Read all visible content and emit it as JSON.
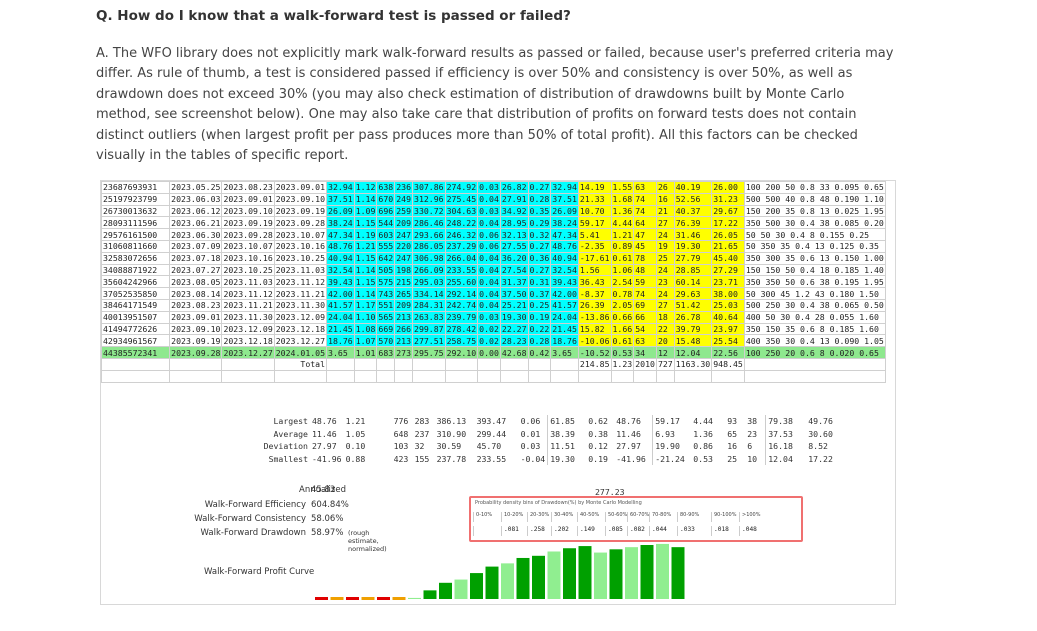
{
  "question": "Q. How do I know that a walk-forward test is passed or failed?",
  "answer": "A. The WFO library does not explicitly mark walk-forward results as passed or failed, because user's preferred criteria may differ. As rule of thumb, a test is considered passed if efficiency is over 50% and consistency is over 50%, as well as drawdown does not exceed 30% (you may also check estimation of distribution of drawdowns built by Monte Carlo method, see screenshot below). One may also take care that distribution of profits on forward tests does not contain distinct outliers (when largest profit per pass produces more than 50% of total profit). All this factors can be checked visually in the tables of specific report.",
  "rows": [
    [
      "23687693931",
      "2023.05.25",
      "2023.08.23",
      "2023.09.01",
      "32.94",
      "1.12",
      "638",
      "236",
      "307.86",
      "274.92",
      "0.03",
      "26.82",
      "0.27",
      "32.94",
      "14.19",
      "1.55",
      "63",
      "26",
      "40.19",
      "26.00",
      "100 200 50 0.8 33 0.095 0.65"
    ],
    [
      "25197923799",
      "2023.06.03",
      "2023.09.01",
      "2023.09.10",
      "37.51",
      "1.14",
      "670",
      "249",
      "312.96",
      "275.45",
      "0.04",
      "27.91",
      "0.28",
      "37.51",
      "21.33",
      "1.68",
      "74",
      "16",
      "52.56",
      "31.23",
      "500 500 40 0.8 48 0.190 1.10"
    ],
    [
      "26730013632",
      "2023.06.12",
      "2023.09.10",
      "2023.09.19",
      "26.09",
      "1.09",
      "696",
      "259",
      "330.72",
      "304.63",
      "0.03",
      "34.92",
      "0.35",
      "26.09",
      "10.70",
      "1.36",
      "74",
      "21",
      "40.37",
      "29.67",
      "150 200 35 0.8 13 0.025 1.95"
    ],
    [
      "28093111596",
      "2023.06.21",
      "2023.09.19",
      "2023.09.28",
      "38.24",
      "1.15",
      "544",
      "209",
      "286.46",
      "248.22",
      "0.04",
      "28.95",
      "0.29",
      "38.24",
      "59.17",
      "4.44",
      "64",
      "27",
      "76.39",
      "17.22",
      "350 500 30 0.4 38 0.085 0.20"
    ],
    [
      "29576161500",
      "2023.06.30",
      "2023.09.28",
      "2023.10.07",
      "47.34",
      "1.19",
      "603",
      "247",
      "293.66",
      "246.32",
      "0.06",
      "32.13",
      "0.32",
      "47.34",
      "5.41",
      "1.21",
      "47",
      "24",
      "31.46",
      "26.05",
      "50 50 30 0.4 8 0.155 0.25"
    ],
    [
      "31060811660",
      "2023.07.09",
      "2023.10.07",
      "2023.10.16",
      "48.76",
      "1.21",
      "555",
      "220",
      "286.05",
      "237.29",
      "0.06",
      "27.55",
      "0.27",
      "48.76",
      "-2.35",
      "0.89",
      "45",
      "19",
      "19.30",
      "21.65",
      "50 350 35 0.4 13 0.125 0.35"
    ],
    [
      "32583072656",
      "2023.07.18",
      "2023.10.16",
      "2023.10.25",
      "40.94",
      "1.15",
      "642",
      "247",
      "306.98",
      "266.04",
      "0.04",
      "36.20",
      "0.36",
      "40.94",
      "-17.61",
      "0.61",
      "78",
      "25",
      "27.79",
      "45.40",
      "350 300 35 0.6 13 0.150 1.00"
    ],
    [
      "34088871922",
      "2023.07.27",
      "2023.10.25",
      "2023.11.03",
      "32.54",
      "1.14",
      "505",
      "198",
      "266.09",
      "233.55",
      "0.04",
      "27.54",
      "0.27",
      "32.54",
      "1.56",
      "1.06",
      "48",
      "24",
      "28.85",
      "27.29",
      "150 150 50 0.4 18 0.185 1.40"
    ],
    [
      "35604242966",
      "2023.08.05",
      "2023.11.03",
      "2023.11.12",
      "39.43",
      "1.15",
      "575",
      "215",
      "295.03",
      "255.60",
      "0.04",
      "31.37",
      "0.31",
      "39.43",
      "36.43",
      "2.54",
      "59",
      "23",
      "60.14",
      "23.71",
      "350 350 50 0.6 38 0.195 1.95"
    ],
    [
      "37052535850",
      "2023.08.14",
      "2023.11.12",
      "2023.11.21",
      "42.00",
      "1.14",
      "743",
      "265",
      "334.14",
      "292.14",
      "0.04",
      "37.50",
      "0.37",
      "42.00",
      "-8.37",
      "0.78",
      "74",
      "24",
      "29.63",
      "38.00",
      "50 300 45 1.2 43 0.180 1.50"
    ],
    [
      "38464171549",
      "2023.08.23",
      "2023.11.21",
      "2023.11.30",
      "41.57",
      "1.17",
      "551",
      "209",
      "284.31",
      "242.74",
      "0.04",
      "25.21",
      "0.25",
      "41.57",
      "26.39",
      "2.05",
      "69",
      "27",
      "51.42",
      "25.03",
      "500 250 30 0.4 38 0.065 0.50"
    ],
    [
      "40013951507",
      "2023.09.01",
      "2023.11.30",
      "2023.12.09",
      "24.04",
      "1.10",
      "565",
      "213",
      "263.83",
      "239.79",
      "0.03",
      "19.30",
      "0.19",
      "24.04",
      "-13.86",
      "0.66",
      "66",
      "18",
      "26.78",
      "40.64",
      "400 50 30 0.4 28 0.055 1.60"
    ],
    [
      "41494772626",
      "2023.09.10",
      "2023.12.09",
      "2023.12.18",
      "21.45",
      "1.08",
      "669",
      "266",
      "299.87",
      "278.42",
      "0.02",
      "22.27",
      "0.22",
      "21.45",
      "15.82",
      "1.66",
      "54",
      "22",
      "39.79",
      "23.97",
      "350 150 35 0.6 8 0.185 1.60"
    ],
    [
      "42934961567",
      "2023.09.19",
      "2023.12.18",
      "2023.12.27",
      "18.76",
      "1.07",
      "570",
      "213",
      "277.51",
      "258.75",
      "0.02",
      "28.23",
      "0.28",
      "18.76",
      "-10.06",
      "0.61",
      "63",
      "20",
      "15.48",
      "25.54",
      "400 350 30 0.4 13 0.090 1.05"
    ],
    [
      "44385572341",
      "2023.09.28",
      "2023.12.27",
      "2024.01.05",
      "3.65",
      "1.01",
      "683",
      "273",
      "295.75",
      "292.10",
      "0.00",
      "42.68",
      "0.42",
      "3.65",
      "-10.52",
      "0.53",
      "34",
      "12",
      "12.04",
      "22.56",
      "100 250 20 0.6 8 0.020 0.65"
    ]
  ],
  "total": {
    "label": "Total",
    "v1": "214.85",
    "v2": "1.23",
    "v3": "2010",
    "v4": "727",
    "v5": "1163.30",
    "v6": "948.45"
  },
  "stats": [
    {
      "label": "Largest",
      "vals": [
        "48.76",
        "1.21",
        "776",
        "283",
        "386.13",
        "393.47",
        "0.06",
        "61.85",
        "0.62",
        "48.76",
        "59.17",
        "4.44",
        "93",
        "38",
        "79.38",
        "49.76"
      ]
    },
    {
      "label": "Average",
      "vals": [
        "11.46",
        "1.05",
        "648",
        "237",
        "310.90",
        "299.44",
        "0.01",
        "38.39",
        "0.38",
        "11.46",
        "6.93",
        "1.36",
        "65",
        "23",
        "37.53",
        "30.60"
      ]
    },
    {
      "label": "Deviation",
      "vals": [
        "27.97",
        "0.10",
        "103",
        "32",
        "30.59",
        "45.70",
        "0.03",
        "11.51",
        "0.12",
        "27.97",
        "19.90",
        "0.86",
        "16",
        "6",
        "16.18",
        "8.52"
      ]
    },
    {
      "label": "Smallest",
      "vals": [
        "-41.96",
        "0.88",
        "423",
        "155",
        "237.78",
        "233.55",
        "-0.04",
        "19.30",
        "0.19",
        "-41.96",
        "-21.24",
        "0.53",
        "25",
        "10",
        "12.04",
        "17.22"
      ]
    }
  ],
  "wf": {
    "annualized_label": "Annualized",
    "annualized": "45.83",
    "efficiency_label": "Walk-Forward Efficiency",
    "efficiency": "604.84%",
    "consistency_label": "Walk-Forward Consistency",
    "consistency": "58.06%",
    "drawdown_label": "Walk-Forward Drawdown",
    "drawdown": "58.97%",
    "drawdown_note": "(rough estimate, normalized)",
    "profit_curve_label": "Walk-Forward Profit Curve",
    "mc_total": "277.23"
  },
  "mc": {
    "title": "Probability density bins of Drawdown(%) by Monte Carlo Modelling",
    "bins": [
      "0-10%",
      "10-20%",
      "20-30%",
      "30-40%",
      "40-50%",
      "50-60%",
      "60-70%",
      "70-80%",
      "80-90%",
      "90-100%",
      ">100%"
    ],
    "vals": [
      "",
      ".081",
      ".258",
      ".202",
      ".149",
      ".085",
      ".082",
      ".044",
      ".033",
      ".018",
      ".048"
    ]
  },
  "profit_curve": {
    "values": [
      -1,
      -1,
      -0.7,
      -1,
      -0.8,
      -0.3,
      0.1,
      0.8,
      1.5,
      1.8,
      2.4,
      3.0,
      3.3,
      3.8,
      4.0,
      4.4,
      4.7,
      4.9,
      4.3,
      4.6,
      4.8,
      5.0,
      5.1,
      4.8
    ],
    "colors": {
      "neg_red": "#e00000",
      "neg_orange": "#f0a000",
      "pos_dark": "#00a000",
      "pos_light": "#90ee90"
    }
  },
  "colors": {
    "cyan": "#00ffff",
    "yellow": "#ffff00",
    "green_row": "#8ee88e",
    "highlight_box": "#f07070"
  }
}
